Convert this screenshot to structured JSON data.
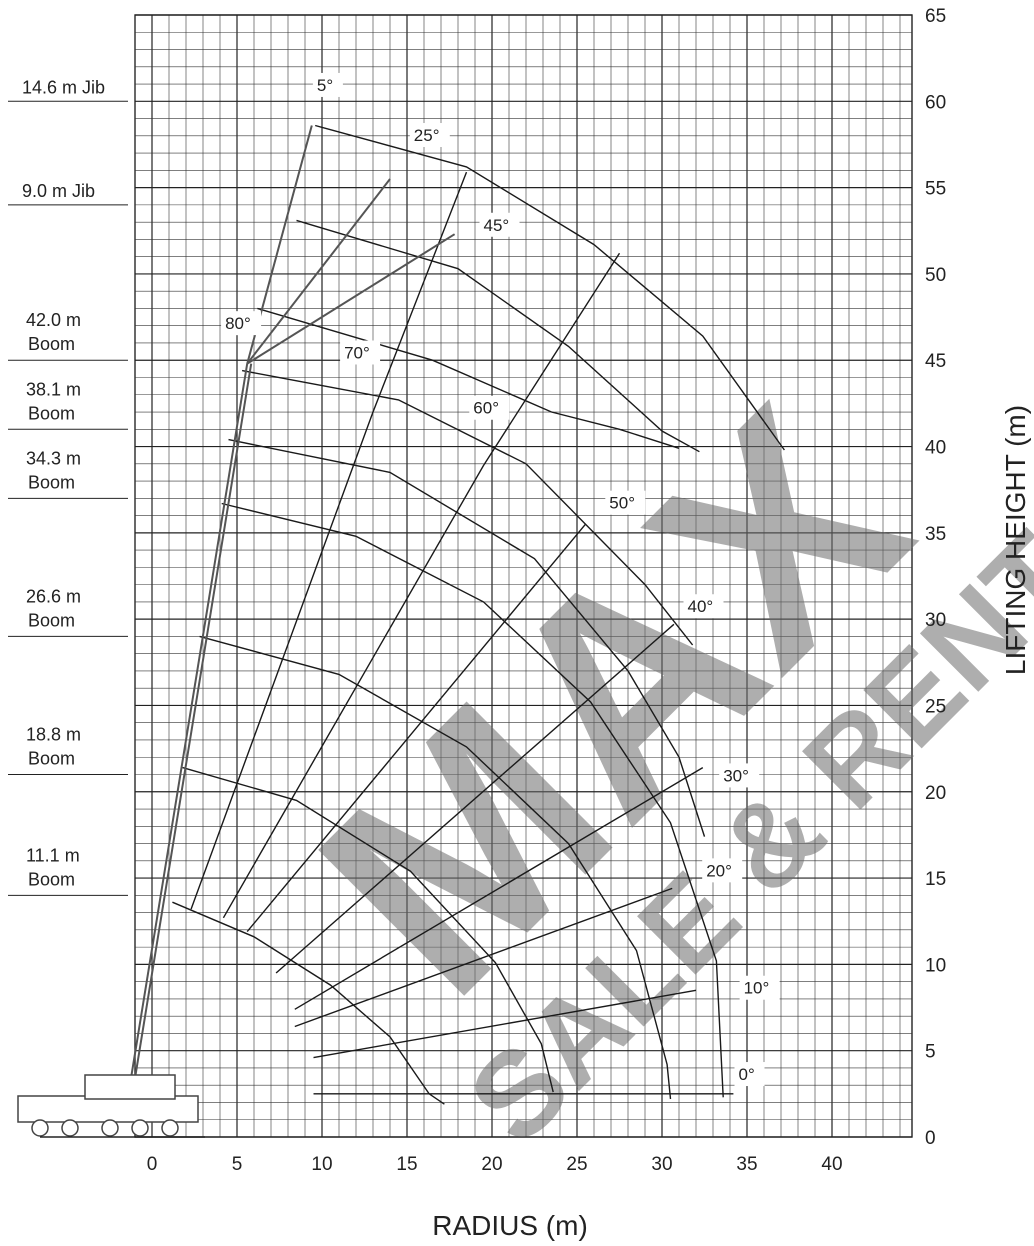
{
  "chart_data": {
    "type": "line",
    "title": "",
    "xlabel": "RADIUS (m)",
    "ylabel": "LIFTING HEIGHT (m)",
    "xlim": [
      -10,
      45
    ],
    "ylim": [
      0,
      65
    ],
    "grid": true,
    "x_ticks": [
      "0",
      "5",
      "10",
      "15",
      "20",
      "25",
      "30",
      "35",
      "40"
    ],
    "y_ticks": [
      "0",
      "5",
      "10",
      "15",
      "20",
      "25",
      "30",
      "35",
      "40",
      "45",
      "50",
      "55",
      "60",
      "65"
    ],
    "boom_configurations": [
      {
        "label": "14.6 m Jib",
        "height": 60
      },
      {
        "label": "9.0 m Jib",
        "height": 54
      },
      {
        "label": "42.0 m Boom",
        "height": 45
      },
      {
        "label": "38.1 m Boom",
        "height": 41
      },
      {
        "label": "34.3 m Boom",
        "height": 37
      },
      {
        "label": "26.6 m Boom",
        "height": 29
      },
      {
        "label": "18.8 m Boom",
        "height": 21
      },
      {
        "label": "11.1 m Boom",
        "height": 14
      }
    ],
    "boom_angle_labels": [
      {
        "text": "0°",
        "x": 34.5,
        "y": 3.3
      },
      {
        "text": "10°",
        "x": 34.8,
        "y": 8.3
      },
      {
        "text": "20°",
        "x": 32.6,
        "y": 15.1
      },
      {
        "text": "30°",
        "x": 33.6,
        "y": 20.6
      },
      {
        "text": "40°",
        "x": 31.5,
        "y": 30.4
      },
      {
        "text": "50°",
        "x": 26.9,
        "y": 36.4
      },
      {
        "text": "60°",
        "x": 18.9,
        "y": 41.9
      },
      {
        "text": "70°",
        "x": 11.3,
        "y": 45.1
      },
      {
        "text": "80°",
        "x": 4.3,
        "y": 46.8
      }
    ],
    "jib_angle_labels": [
      {
        "text": "5°",
        "x": 9.7,
        "y": 60.6
      },
      {
        "text": "25°",
        "x": 15.4,
        "y": 57.7
      },
      {
        "text": "45°",
        "x": 19.5,
        "y": 52.5
      }
    ],
    "radius_arcs": [
      {
        "name": "11.1 m Boom",
        "points": [
          [
            1.2,
            13.6
          ],
          [
            6.0,
            11.6
          ],
          [
            10.5,
            8.8
          ],
          [
            14.0,
            5.8
          ],
          [
            16.3,
            2.5
          ],
          [
            17.2,
            1.9
          ]
        ]
      },
      {
        "name": "18.8 m Boom",
        "points": [
          [
            1.8,
            21.4
          ],
          [
            8.5,
            19.5
          ],
          [
            15.2,
            15.4
          ],
          [
            20.2,
            10.1
          ],
          [
            22.9,
            5.4
          ],
          [
            23.6,
            2.6
          ]
        ]
      },
      {
        "name": "26.6 m Boom",
        "points": [
          [
            2.8,
            29.0
          ],
          [
            11.0,
            26.8
          ],
          [
            18.5,
            22.6
          ],
          [
            24.5,
            17.0
          ],
          [
            28.5,
            10.8
          ],
          [
            30.3,
            4.2
          ],
          [
            30.5,
            2.2
          ]
        ]
      },
      {
        "name": "34.3 m Boom",
        "points": [
          [
            4.1,
            36.7
          ],
          [
            12.0,
            34.8
          ],
          [
            19.5,
            31.0
          ],
          [
            25.8,
            25.2
          ],
          [
            30.5,
            18.2
          ],
          [
            33.2,
            10.2
          ],
          [
            33.6,
            2.3
          ]
        ]
      },
      {
        "name": "38.1 m Boom",
        "points": [
          [
            4.5,
            40.4
          ],
          [
            14.0,
            38.5
          ],
          [
            22.5,
            33.5
          ],
          [
            28.0,
            27.0
          ],
          [
            31.0,
            22.0
          ],
          [
            32.5,
            17.4
          ]
        ]
      },
      {
        "name": "42.0 m Boom",
        "points": [
          [
            5.3,
            44.4
          ],
          [
            14.5,
            42.7
          ],
          [
            22.0,
            39.0
          ],
          [
            29.0,
            32.0
          ],
          [
            31.8,
            28.5
          ]
        ]
      }
    ],
    "angle_rays": [
      {
        "angle": "0°",
        "points": [
          [
            9.5,
            2.5
          ],
          [
            34.2,
            2.5
          ]
        ]
      },
      {
        "angle": "10°",
        "points": [
          [
            9.5,
            4.6
          ],
          [
            32.0,
            8.5
          ]
        ]
      },
      {
        "angle": "20°",
        "points": [
          [
            8.4,
            6.4
          ],
          [
            30.6,
            14.4
          ]
        ]
      },
      {
        "angle": "30°",
        "points": [
          [
            8.4,
            7.4
          ],
          [
            32.4,
            21.4
          ]
        ]
      },
      {
        "angle": "40°",
        "points": [
          [
            7.3,
            9.5
          ],
          [
            30.7,
            29.7
          ]
        ]
      },
      {
        "angle": "50°",
        "points": [
          [
            5.6,
            11.9
          ],
          [
            25.5,
            35.5
          ]
        ]
      },
      {
        "angle": "60°",
        "points": [
          [
            4.2,
            12.7
          ],
          [
            19.5,
            38.9
          ],
          [
            27.5,
            51.2
          ]
        ]
      },
      {
        "angle": "70°",
        "points": [
          [
            2.3,
            13.2
          ],
          [
            13.0,
            42.0
          ],
          [
            18.5,
            55.9
          ]
        ]
      }
    ],
    "jib_arcs": [
      {
        "name": "14.6 m Jib",
        "points": [
          [
            9.6,
            58.6
          ],
          [
            18.5,
            56.2
          ],
          [
            26.0,
            51.7
          ],
          [
            32.4,
            46.4
          ],
          [
            37.2,
            39.8
          ]
        ]
      },
      {
        "name": "9.0 m Jib",
        "points": [
          [
            8.5,
            53.1
          ],
          [
            18.0,
            50.3
          ],
          [
            24.5,
            45.8
          ],
          [
            30.0,
            40.9
          ],
          [
            32.2,
            39.7
          ]
        ]
      },
      {
        "name": "jib 42.0 m",
        "points": [
          [
            6.2,
            48.0
          ],
          [
            16.5,
            45.0
          ],
          [
            23.5,
            42.0
          ],
          [
            27.5,
            41.0
          ],
          [
            31.0,
            39.9
          ]
        ]
      }
    ]
  },
  "watermark": {
    "line1": "MAX",
    "line2": "SALE & RENTAL"
  }
}
